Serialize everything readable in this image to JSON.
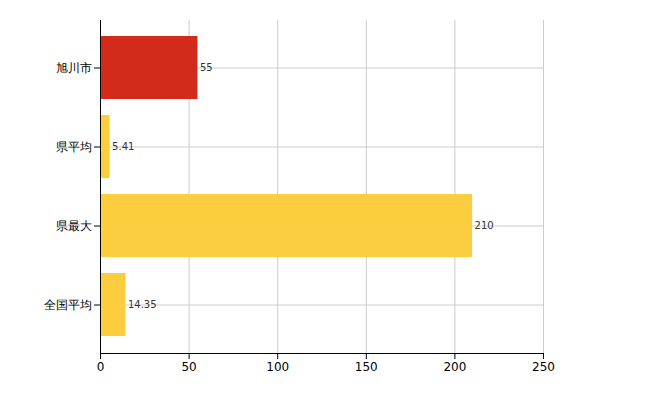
{
  "chart_data": {
    "type": "bar",
    "orientation": "horizontal",
    "categories": [
      "旭川市",
      "県平均",
      "県最大",
      "全国平均"
    ],
    "values": [
      55,
      5.41,
      210,
      14.35
    ],
    "colors": [
      "#d42a1c",
      "#fccd3e",
      "#fccd3e",
      "#fccd3e"
    ],
    "xlim": [
      0,
      250
    ],
    "xticks": [
      0,
      50,
      100,
      150,
      200,
      250
    ],
    "grid": true,
    "data_labels": true
  }
}
